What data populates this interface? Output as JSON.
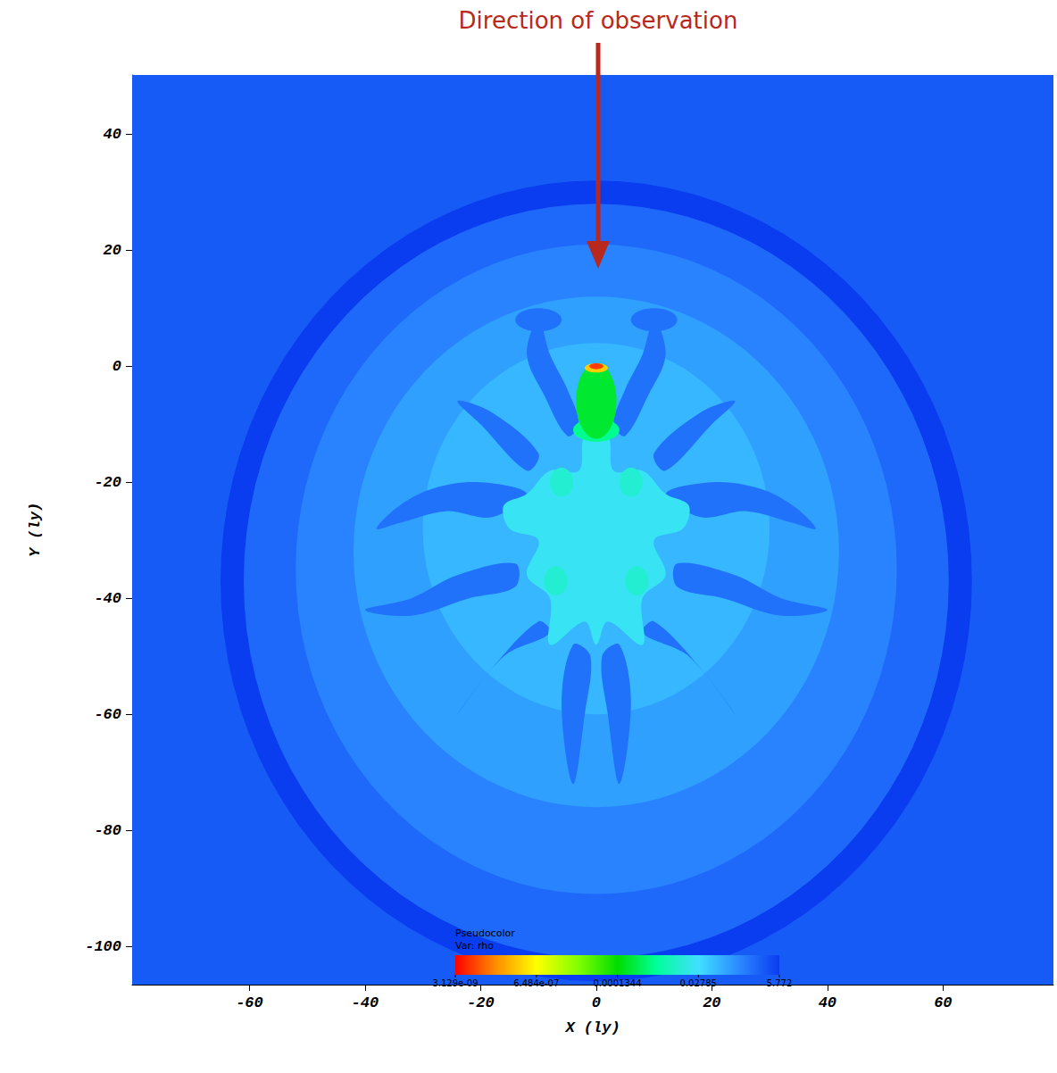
{
  "chart_data": {
    "type": "pseudocolor",
    "annotation": "Direction of observation",
    "xlabel": "X (ly)",
    "ylabel": "Y (ly)",
    "xlim": [
      -80.3,
      79.1
    ],
    "ylim": [
      -106.6,
      50.2
    ],
    "xticks": [
      -60,
      -40,
      -20,
      0,
      20,
      40,
      60
    ],
    "yticks": [
      -100,
      -80,
      -60,
      -40,
      -20,
      0,
      20,
      40
    ],
    "grid": false,
    "colorbar": {
      "title": "Pseudocolor",
      "variable": "Var: rho",
      "range": [
        3.129e-09,
        5.772
      ],
      "log": true,
      "ticks": [
        {
          "value": 3.129e-09,
          "label": "3.129e-09"
        },
        {
          "value": 6.484e-07,
          "label": "6.484e-07"
        },
        0.0001344,
        0.02785,
        5.772
      ]
    },
    "background_rho": 2.0,
    "regions": [
      {
        "shape": "ellipse",
        "center": [
          0,
          -37
        ],
        "radius": [
          65,
          69
        ],
        "rho": 5.772
      },
      {
        "shape": "ellipse",
        "center": [
          0,
          -37
        ],
        "radius": [
          61,
          65
        ],
        "rho": 1.2
      },
      {
        "shape": "ellipse",
        "center": [
          0,
          -35
        ],
        "radius": [
          52,
          56
        ],
        "rho": 0.5
      },
      {
        "shape": "ellipse",
        "center": [
          0,
          -32
        ],
        "radius": [
          42,
          44
        ],
        "rho": 0.2
      },
      {
        "shape": "ellipse",
        "center": [
          0,
          -28
        ],
        "radius": [
          30,
          32
        ],
        "rho": 0.1
      },
      {
        "shape": "polygon",
        "points": [
          [
            -12,
            -22
          ],
          [
            -20,
            -20
          ],
          [
            -28,
            -21
          ],
          [
            -34,
            -24
          ],
          [
            -38,
            -28
          ],
          [
            -34,
            -27
          ],
          [
            -26,
            -25
          ],
          [
            -18,
            -26
          ]
        ],
        "rho": 0.9
      },
      {
        "shape": "polygon",
        "points": [
          [
            12,
            -22
          ],
          [
            20,
            -20
          ],
          [
            28,
            -21
          ],
          [
            34,
            -24
          ],
          [
            38,
            -28
          ],
          [
            34,
            -27
          ],
          [
            26,
            -25
          ],
          [
            18,
            -26
          ]
        ],
        "rho": 0.9
      },
      {
        "shape": "polygon",
        "points": [
          [
            -14,
            -34
          ],
          [
            -24,
            -36
          ],
          [
            -32,
            -40
          ],
          [
            -40,
            -42
          ],
          [
            -32,
            -43
          ],
          [
            -22,
            -40
          ],
          [
            -14,
            -38
          ]
        ],
        "rho": 0.9
      },
      {
        "shape": "polygon",
        "points": [
          [
            14,
            -34
          ],
          [
            24,
            -36
          ],
          [
            32,
            -40
          ],
          [
            40,
            -42
          ],
          [
            32,
            -43
          ],
          [
            22,
            -40
          ],
          [
            14,
            -38
          ]
        ],
        "rho": 0.9
      },
      {
        "shape": "polygon",
        "points": [
          [
            -4,
            -48
          ],
          [
            -6,
            -58
          ],
          [
            -4,
            -72
          ],
          [
            -2,
            -60
          ],
          [
            -1,
            -50
          ]
        ],
        "rho": 0.9
      },
      {
        "shape": "polygon",
        "points": [
          [
            4,
            -48
          ],
          [
            6,
            -58
          ],
          [
            4,
            -72
          ],
          [
            2,
            -60
          ],
          [
            1,
            -50
          ]
        ],
        "rho": 0.9
      },
      {
        "shape": "polygon",
        "points": [
          [
            -5,
            -12
          ],
          [
            -9,
            -5
          ],
          [
            -12,
            2
          ],
          [
            -10,
            8
          ],
          [
            -8,
            2
          ],
          [
            -5,
            -4
          ],
          [
            -3,
            -10
          ]
        ],
        "rho": 0.9
      },
      {
        "shape": "polygon",
        "points": [
          [
            5,
            -12
          ],
          [
            9,
            -5
          ],
          [
            12,
            2
          ],
          [
            10,
            8
          ],
          [
            8,
            2
          ],
          [
            5,
            -4
          ],
          [
            3,
            -10
          ]
        ],
        "rho": 0.9
      },
      {
        "shape": "polygon",
        "points": [
          [
            -10,
            -15
          ],
          [
            -18,
            -8
          ],
          [
            -24,
            -6
          ],
          [
            -20,
            -10
          ],
          [
            -12,
            -18
          ]
        ],
        "rho": 0.9
      },
      {
        "shape": "polygon",
        "points": [
          [
            10,
            -15
          ],
          [
            18,
            -8
          ],
          [
            24,
            -6
          ],
          [
            20,
            -10
          ],
          [
            12,
            -18
          ]
        ],
        "rho": 0.9
      },
      {
        "shape": "polygon",
        "points": [
          [
            -10,
            -44
          ],
          [
            -18,
            -52
          ],
          [
            -24,
            -60
          ],
          [
            -16,
            -50
          ],
          [
            -8,
            -46
          ]
        ],
        "rho": 0.9
      },
      {
        "shape": "polygon",
        "points": [
          [
            10,
            -44
          ],
          [
            18,
            -52
          ],
          [
            24,
            -60
          ],
          [
            16,
            -50
          ],
          [
            8,
            -46
          ]
        ],
        "rho": 0.9
      },
      {
        "shape": "ellipse",
        "center": [
          -10,
          8
        ],
        "radius": [
          4,
          2
        ],
        "rho": 0.9
      },
      {
        "shape": "ellipse",
        "center": [
          10,
          8
        ],
        "radius": [
          4,
          2
        ],
        "rho": 0.9
      },
      {
        "shape": "polygon",
        "points": [
          [
            -2,
            -12
          ],
          [
            2,
            -12
          ],
          [
            3,
            -18
          ],
          [
            8,
            -18
          ],
          [
            12,
            -22
          ],
          [
            16,
            -24
          ],
          [
            15,
            -28
          ],
          [
            10,
            -30
          ],
          [
            12,
            -36
          ],
          [
            8,
            -40
          ],
          [
            8,
            -48
          ],
          [
            2,
            -44
          ],
          [
            0,
            -48
          ],
          [
            -2,
            -44
          ],
          [
            -8,
            -48
          ],
          [
            -8,
            -40
          ],
          [
            -12,
            -36
          ],
          [
            -10,
            -30
          ],
          [
            -15,
            -28
          ],
          [
            -16,
            -24
          ],
          [
            -12,
            -22
          ],
          [
            -8,
            -18
          ],
          [
            -3,
            -18
          ]
        ],
        "rho": 0.02
      },
      {
        "shape": "ellipse",
        "center": [
          -6,
          -20
        ],
        "radius": [
          2,
          2.5
        ],
        "rho": 0.008
      },
      {
        "shape": "ellipse",
        "center": [
          6,
          -20
        ],
        "radius": [
          2,
          2.5
        ],
        "rho": 0.008
      },
      {
        "shape": "ellipse",
        "center": [
          -7,
          -37
        ],
        "radius": [
          2,
          2.5
        ],
        "rho": 0.008
      },
      {
        "shape": "ellipse",
        "center": [
          7,
          -37
        ],
        "radius": [
          2,
          2.5
        ],
        "rho": 0.008
      },
      {
        "shape": "ellipse",
        "center": [
          0,
          -11
        ],
        "radius": [
          4,
          2
        ],
        "rho": 0.0015
      },
      {
        "shape": "ellipse",
        "center": [
          0,
          -6
        ],
        "radius": [
          3.5,
          6.5
        ],
        "rho": 0.0003
      },
      {
        "shape": "ellipse",
        "center": [
          0,
          -0.3
        ],
        "radius": [
          2,
          0.8
        ],
        "rho": 2e-07
      },
      {
        "shape": "ellipse",
        "center": [
          0,
          0
        ],
        "radius": [
          1.2,
          0.5
        ],
        "rho": 1e-08
      }
    ]
  }
}
